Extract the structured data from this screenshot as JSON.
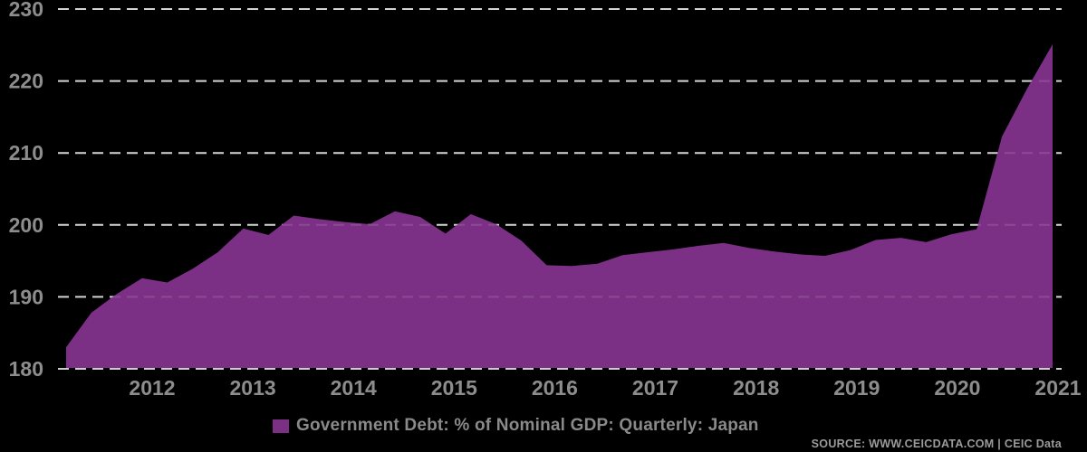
{
  "chart_data": {
    "type": "area",
    "legend_label": "Government Debt: % of Nominal GDP: Quarterly: Japan",
    "series_name": "Government Debt: % of Nominal GDP: Quarterly: Japan",
    "series_color": "#7B3085",
    "background_color": "#000000",
    "grid_color": "#CDCDCD",
    "tick_label_color": "#8D8D8D",
    "grid": "horizontal-dashed",
    "legend_position": "bottom-center",
    "ylim": [
      180,
      230
    ],
    "y_ticks": [
      180,
      190,
      200,
      210,
      220,
      230
    ],
    "x_tick_labels": [
      "2012",
      "2013",
      "2014",
      "2015",
      "2016",
      "2017",
      "2018",
      "2019",
      "2020",
      "2021"
    ],
    "x": [
      "2011 Q2",
      "2011 Q3",
      "2011 Q4",
      "2012 Q1",
      "2012 Q2",
      "2012 Q3",
      "2012 Q4",
      "2013 Q1",
      "2013 Q2",
      "2013 Q3",
      "2013 Q4",
      "2014 Q1",
      "2014 Q2",
      "2014 Q3",
      "2014 Q4",
      "2015 Q1",
      "2015 Q2",
      "2015 Q3",
      "2015 Q4",
      "2016 Q1",
      "2016 Q2",
      "2016 Q3",
      "2016 Q4",
      "2017 Q1",
      "2017 Q2",
      "2017 Q3",
      "2017 Q4",
      "2018 Q1",
      "2018 Q2",
      "2018 Q3",
      "2018 Q4",
      "2019 Q1",
      "2019 Q2",
      "2019 Q3",
      "2019 Q4",
      "2020 Q1",
      "2020 Q2",
      "2020 Q3",
      "2020 Q4",
      "2021 Q1"
    ],
    "values": [
      183.0,
      187.8,
      190.4,
      192.6,
      192.0,
      193.9,
      196.2,
      199.5,
      198.6,
      201.3,
      200.8,
      200.4,
      200.1,
      201.9,
      201.1,
      198.8,
      201.5,
      200.1,
      197.8,
      194.4,
      194.3,
      194.6,
      195.8,
      196.2,
      196.6,
      197.1,
      197.5,
      196.8,
      196.3,
      195.9,
      195.7,
      196.5,
      197.9,
      198.2,
      197.6,
      198.7,
      199.4,
      212.3,
      219.0,
      225.1
    ]
  },
  "legend": {
    "label": "Government Debt: % of Nominal GDP: Quarterly: Japan"
  },
  "source": {
    "text": "SOURCE: WWW.CEICDATA.COM | CEIC Data"
  }
}
